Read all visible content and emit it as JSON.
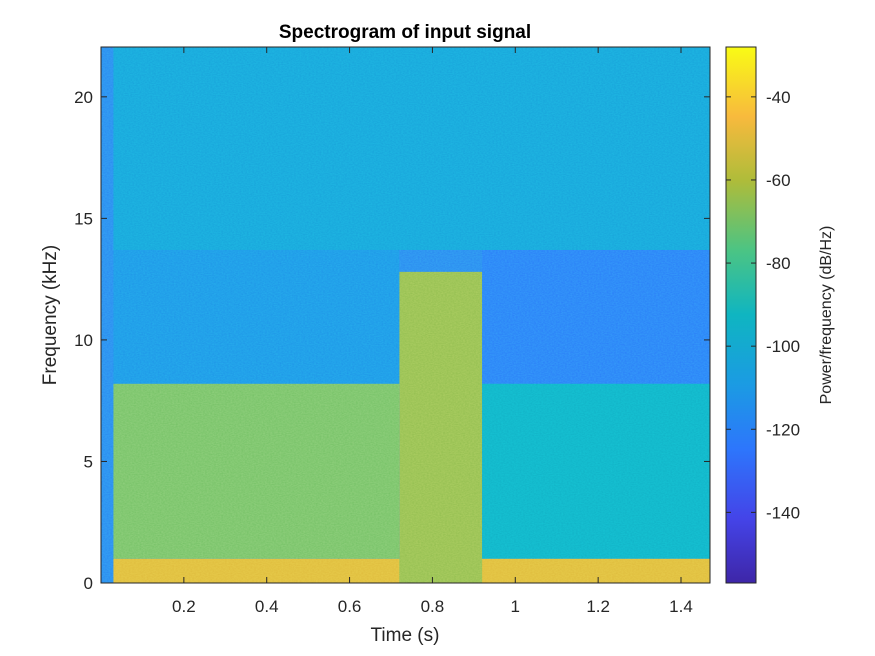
{
  "chart_data": {
    "type": "heatmap",
    "title": "Spectrogram of input signal",
    "xlabel": "Time (s)",
    "ylabel": "Frequency (kHz)",
    "colorbar_label": "Power/frequency (dB/Hz)",
    "colormap": "parula",
    "xlim": [
      0,
      1.47
    ],
    "ylim": [
      0,
      22.05
    ],
    "clim": [
      -157,
      -28
    ],
    "x_ticks": [
      0.2,
      0.4,
      0.6,
      0.8,
      1,
      1.2,
      1.4
    ],
    "x_tick_labels": [
      "0.2",
      "0.4",
      "0.6",
      "0.8",
      "1",
      "1.2",
      "1.4"
    ],
    "y_ticks": [
      0,
      5,
      10,
      15,
      20
    ],
    "y_tick_labels": [
      "0",
      "5",
      "10",
      "15",
      "20"
    ],
    "colorbar_ticks": [
      -40,
      -60,
      -80,
      -100,
      -120,
      -140
    ],
    "colorbar_tick_labels": [
      "-40",
      "-60",
      "-80",
      "-100",
      "-120",
      "-140"
    ],
    "grid": false,
    "approx_regions": [
      {
        "t": [
          0.03,
          1.47
        ],
        "f": [
          0,
          1
        ],
        "level_db": -50
      },
      {
        "t": [
          0.03,
          0.72
        ],
        "f": [
          1,
          8.2
        ],
        "level_db": -70
      },
      {
        "t": [
          0.72,
          0.92
        ],
        "f": [
          0,
          12.8
        ],
        "level_db": -65
      },
      {
        "t": [
          0.92,
          1.47
        ],
        "f": [
          1,
          8.2
        ],
        "level_db": -95
      },
      {
        "t": [
          0.03,
          0.72
        ],
        "f": [
          8.2,
          13.7
        ],
        "level_db": -112
      },
      {
        "t": [
          0.92,
          1.47
        ],
        "f": [
          8.2,
          13.7
        ],
        "level_db": -122
      },
      {
        "t": [
          0.03,
          1.47
        ],
        "f": [
          13.7,
          22.05
        ],
        "level_db": -105
      }
    ]
  }
}
